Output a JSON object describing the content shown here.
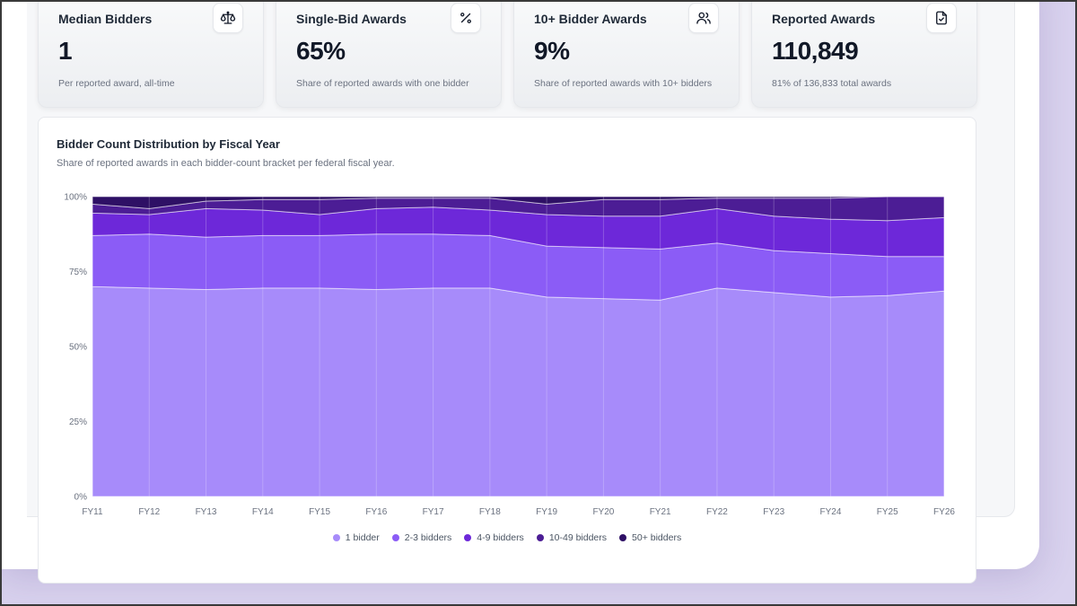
{
  "cards": [
    {
      "title": "Median Bidders",
      "value": "1",
      "sub": "Per reported award, all-time",
      "icon": "scale-icon"
    },
    {
      "title": "Single-Bid Awards",
      "value": "65%",
      "sub": "Share of reported awards with one bidder",
      "icon": "percent-icon"
    },
    {
      "title": "10+ Bidder Awards",
      "value": "9%",
      "sub": "Share of reported awards with 10+ bidders",
      "icon": "users-icon"
    },
    {
      "title": "Reported Awards",
      "value": "110,849",
      "sub": "81% of 136,833 total awards",
      "icon": "file-check-icon"
    }
  ],
  "chart_data": {
    "type": "area",
    "stacked": true,
    "title": "Bidder Count Distribution by Fiscal Year",
    "subtitle": "Share of reported awards in each bidder-count bracket per federal fiscal year.",
    "categories": [
      "FY11",
      "FY12",
      "FY13",
      "FY14",
      "FY15",
      "FY16",
      "FY17",
      "FY18",
      "FY19",
      "FY20",
      "FY21",
      "FY22",
      "FY23",
      "FY24",
      "FY25",
      "FY26"
    ],
    "y_ticks": [
      "0%",
      "25%",
      "50%",
      "75%",
      "100%"
    ],
    "ylim": [
      0,
      100
    ],
    "legend_position": "bottom",
    "series": [
      {
        "name": "1 bidder",
        "color": "#a78bfa",
        "values": [
          70,
          69.5,
          69,
          69.5,
          69.5,
          69,
          69.5,
          69.5,
          66.5,
          66,
          65.5,
          69.5,
          68,
          66.5,
          67,
          68.5
        ]
      },
      {
        "name": "2-3 bidders",
        "color": "#8b5cf6",
        "values": [
          17,
          18,
          17.5,
          17.5,
          17.5,
          18.5,
          18,
          17.5,
          17,
          17,
          17,
          15,
          14,
          14.5,
          13,
          11.5
        ]
      },
      {
        "name": "4-9 bidders",
        "color": "#6d28d9",
        "values": [
          7.5,
          6.5,
          9.5,
          8.5,
          7,
          8.5,
          9,
          8.5,
          10.5,
          10.5,
          11,
          11.5,
          11.5,
          11.5,
          12,
          13
        ]
      },
      {
        "name": "10-49 bidders",
        "color": "#4c1d95",
        "values": [
          3,
          2,
          2.5,
          3.5,
          5,
          3.5,
          3,
          4,
          3.5,
          5.5,
          5.5,
          3.5,
          6,
          7,
          8,
          7
        ]
      },
      {
        "name": "50+ bidders",
        "color": "#2e1065",
        "values": [
          2.5,
          4,
          1.5,
          1,
          1,
          0.5,
          0.5,
          0.5,
          2.5,
          1,
          1,
          0.5,
          0.5,
          0.5,
          0,
          0
        ]
      }
    ]
  }
}
